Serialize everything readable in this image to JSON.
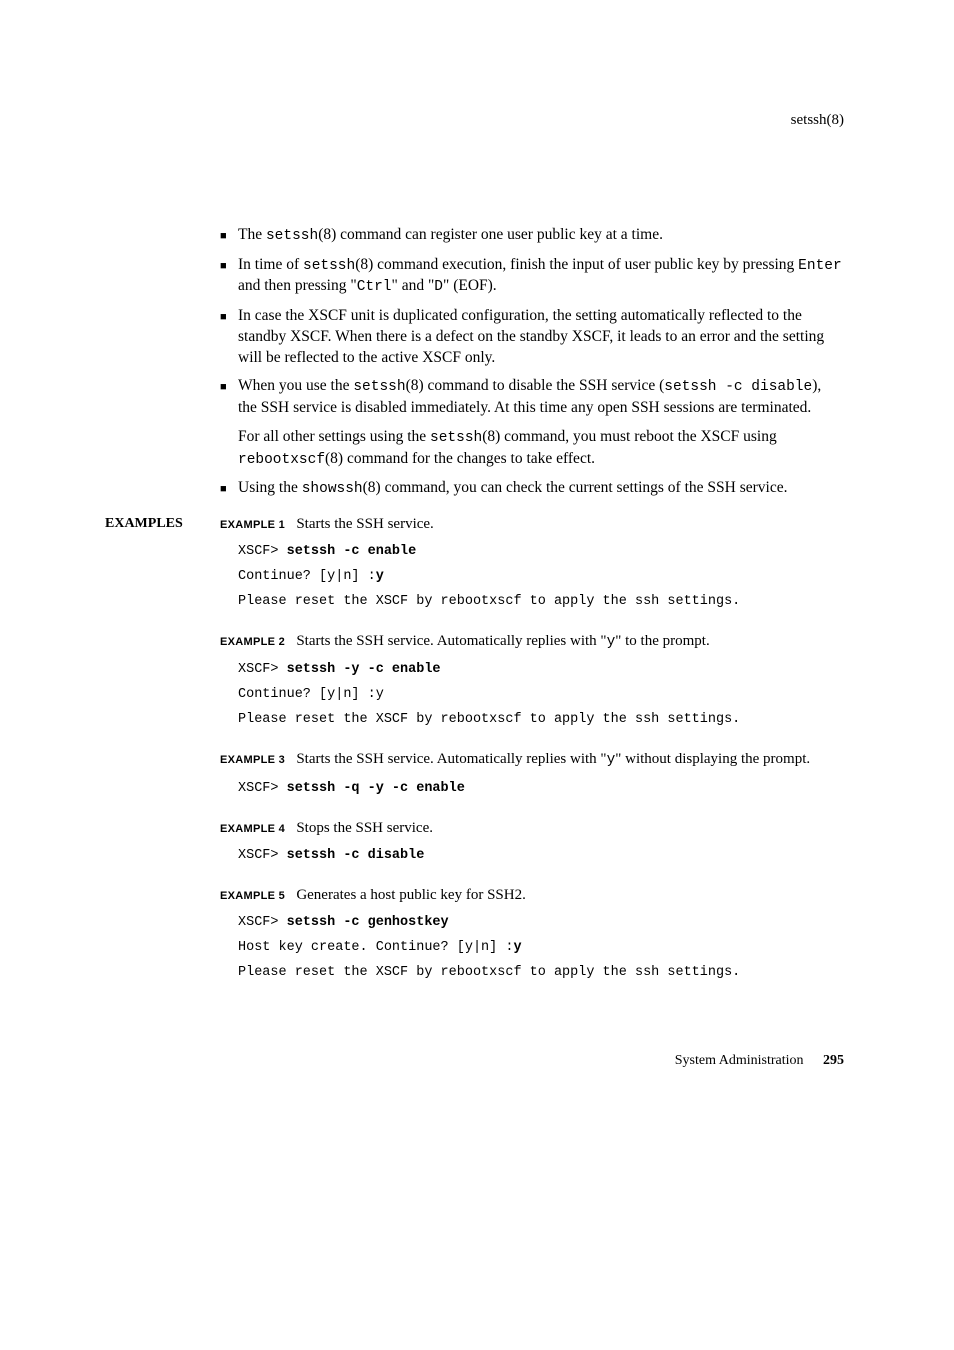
{
  "header": {
    "title": "setssh(8)"
  },
  "bullets": [
    {
      "parts": [
        {
          "t": "plain",
          "v": "The "
        },
        {
          "t": "mono",
          "v": "setssh"
        },
        {
          "t": "plain",
          "v": "(8) command can register one user public key at a time."
        }
      ]
    },
    {
      "parts": [
        {
          "t": "plain",
          "v": "In time of "
        },
        {
          "t": "mono",
          "v": "setssh"
        },
        {
          "t": "plain",
          "v": "(8) command execution, finish the input of user public key by pressing "
        },
        {
          "t": "mono",
          "v": "Enter"
        },
        {
          "t": "plain",
          "v": " and then pressing \""
        },
        {
          "t": "mono",
          "v": "Ctrl"
        },
        {
          "t": "plain",
          "v": "\" and \""
        },
        {
          "t": "mono",
          "v": "D"
        },
        {
          "t": "plain",
          "v": "\" (EOF)."
        }
      ]
    },
    {
      "parts": [
        {
          "t": "plain",
          "v": "In case the XSCF unit is duplicated configuration, the setting automatically reflected to the standby XSCF. When there is a defect on the standby XSCF, it leads to an error and the setting will be reflected to the active XSCF only."
        }
      ]
    },
    {
      "parts": [
        {
          "t": "plain",
          "v": "When you use the "
        },
        {
          "t": "mono",
          "v": "setssh"
        },
        {
          "t": "plain",
          "v": "(8) command to disable the SSH service ("
        },
        {
          "t": "mono",
          "v": "setssh -c disable"
        },
        {
          "t": "plain",
          "v": "), the SSH service is disabled immediately. At this time any open SSH sessions are terminated."
        }
      ],
      "sub": [
        {
          "t": "plain",
          "v": "For all other settings using the "
        },
        {
          "t": "mono",
          "v": "setssh"
        },
        {
          "t": "plain",
          "v": "(8) command, you must reboot the XSCF using "
        },
        {
          "t": "mono",
          "v": "rebootxscf"
        },
        {
          "t": "plain",
          "v": "(8) command for the changes to take effect."
        }
      ]
    },
    {
      "parts": [
        {
          "t": "plain",
          "v": "Using the "
        },
        {
          "t": "mono",
          "v": "showssh"
        },
        {
          "t": "plain",
          "v": "(8) command, you can check the current settings of the SSH service."
        }
      ]
    }
  ],
  "sectionLabel": "EXAMPLES",
  "examples": [
    {
      "label": "EXAMPLE 1",
      "desc": [
        {
          "t": "plain",
          "v": "Starts the SSH service."
        }
      ],
      "code": [
        [
          {
            "t": "plain",
            "v": "XSCF> "
          },
          {
            "t": "bold",
            "v": "setssh -c enable"
          }
        ],
        [
          {
            "t": "plain",
            "v": "Continue? [y|n] :"
          },
          {
            "t": "bold",
            "v": "y"
          }
        ],
        [
          {
            "t": "plain",
            "v": "Please reset the XSCF by rebootxscf to apply the ssh settings."
          }
        ]
      ]
    },
    {
      "label": "EXAMPLE 2",
      "desc": [
        {
          "t": "plain",
          "v": "Starts the SSH service. Automatically replies with \""
        },
        {
          "t": "mono",
          "v": "y"
        },
        {
          "t": "plain",
          "v": "\" to the prompt."
        }
      ],
      "code": [
        [
          {
            "t": "plain",
            "v": "XSCF> "
          },
          {
            "t": "bold",
            "v": "setssh -y -c enable"
          }
        ],
        [
          {
            "t": "plain",
            "v": "Continue? [y|n] :y"
          }
        ],
        [
          {
            "t": "plain",
            "v": "Please reset the XSCF by rebootxscf to apply the ssh settings."
          }
        ]
      ]
    },
    {
      "label": "EXAMPLE 3",
      "desc": [
        {
          "t": "plain",
          "v": "Starts the SSH service. Automatically replies with \""
        },
        {
          "t": "mono",
          "v": "y"
        },
        {
          "t": "plain",
          "v": "\" without displaying the prompt."
        }
      ],
      "code": [
        [
          {
            "t": "plain",
            "v": "XSCF> "
          },
          {
            "t": "bold",
            "v": "setssh -q -y -c enable"
          }
        ]
      ]
    },
    {
      "label": "EXAMPLE 4",
      "desc": [
        {
          "t": "plain",
          "v": "Stops the SSH service."
        }
      ],
      "code": [
        [
          {
            "t": "plain",
            "v": "XSCF> "
          },
          {
            "t": "bold",
            "v": "setssh -c disable"
          }
        ]
      ]
    },
    {
      "label": "EXAMPLE 5",
      "desc": [
        {
          "t": "plain",
          "v": "Generates a host public key for SSH2."
        }
      ],
      "code": [
        [
          {
            "t": "plain",
            "v": "XSCF> "
          },
          {
            "t": "bold",
            "v": "setssh -c genhostkey"
          }
        ],
        [
          {
            "t": "plain",
            "v": "Host key create. Continue? [y|n] :"
          },
          {
            "t": "bold",
            "v": "y"
          }
        ],
        [
          {
            "t": "plain",
            "v": "Please reset the XSCF by rebootxscf to apply the ssh settings."
          }
        ]
      ]
    }
  ],
  "footer": {
    "text": "System Administration",
    "page": "295"
  }
}
